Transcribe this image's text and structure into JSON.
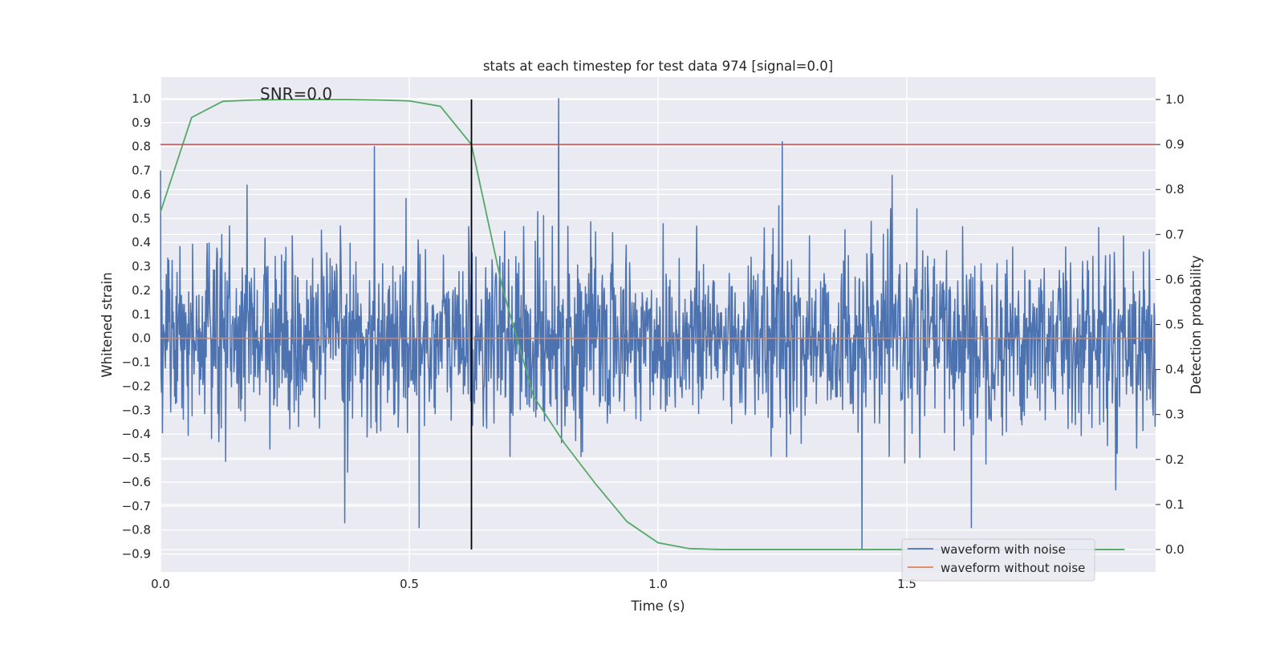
{
  "chart_data": {
    "type": "line",
    "title": "stats at each timestep for test data 974 [signal=0.0]",
    "xlabel": "Time (s)",
    "ylabel_left": "Whitened strain",
    "ylabel_right": "Detection probability",
    "xlim": [
      0.0,
      2.0
    ],
    "ylim_left": [
      -0.975,
      1.09
    ],
    "ylim_right": [
      -0.05,
      1.05
    ],
    "x_ticks": [
      "0.0",
      "0.5",
      "1.0",
      "1.5"
    ],
    "x_tick_values": [
      0.0,
      0.5,
      1.0,
      1.5
    ],
    "y_left_ticks": [
      "−0.9",
      "−0.8",
      "−0.7",
      "−0.6",
      "−0.5",
      "−0.4",
      "−0.3",
      "−0.2",
      "−0.1",
      "0.0",
      "0.1",
      "0.2",
      "0.3",
      "0.4",
      "0.5",
      "0.6",
      "0.7",
      "0.8",
      "0.9",
      "1.0"
    ],
    "y_left_tick_values": [
      -0.9,
      -0.8,
      -0.7,
      -0.6,
      -0.5,
      -0.4,
      -0.3,
      -0.2,
      -0.1,
      0.0,
      0.1,
      0.2,
      0.3,
      0.4,
      0.5,
      0.6,
      0.7,
      0.8,
      0.9,
      1.0
    ],
    "y_right_ticks": [
      "0.0",
      "0.1",
      "0.2",
      "0.3",
      "0.4",
      "0.5",
      "0.6",
      "0.7",
      "0.8",
      "0.9",
      "1.0"
    ],
    "y_right_tick_values": [
      0.0,
      0.1,
      0.2,
      0.3,
      0.4,
      0.5,
      0.6,
      0.7,
      0.8,
      0.9,
      1.0
    ],
    "annotation": "SNR=0.0",
    "grid": true,
    "legend_placement": "lower-right",
    "series": [
      {
        "name": "waveform with noise",
        "axis": "left",
        "color": "#4c72b0",
        "kind": "noise",
        "x_range": [
          0.0,
          2.0
        ],
        "points": 2048,
        "approx_peaks": [
          {
            "x": 0.0,
            "y": 0.7
          },
          {
            "x": 0.43,
            "y": 0.8
          },
          {
            "x": 0.8,
            "y": 1.0
          },
          {
            "x": 1.25,
            "y": 0.82
          },
          {
            "x": 0.37,
            "y": -0.77
          },
          {
            "x": 0.52,
            "y": -0.79
          },
          {
            "x": 1.41,
            "y": -0.88
          },
          {
            "x": 1.63,
            "y": -0.79
          }
        ],
        "typical_amplitude": 0.3
      },
      {
        "name": "waveform without noise",
        "axis": "left",
        "color": "#dd8452",
        "x": [
          0.0,
          2.0
        ],
        "y": [
          0.0,
          0.0
        ]
      },
      {
        "name": "",
        "axis": "right",
        "color": "#55a868",
        "x": [
          0.0,
          0.0625,
          0.125,
          0.1875,
          0.25,
          0.3125,
          0.375,
          0.4375,
          0.5,
          0.5625,
          0.625,
          0.6875,
          0.75,
          0.8125,
          0.875,
          0.9375,
          1.0,
          1.0625,
          1.125,
          1.1875,
          1.25,
          1.3125,
          1.375,
          1.4375,
          1.5,
          1.5625,
          1.625,
          1.6875,
          1.75,
          1.8125,
          1.875,
          1.9375
        ],
        "y": [
          0.75,
          0.96,
          0.996,
          0.999,
          1.0,
          1.0,
          1.0,
          0.999,
          0.997,
          0.985,
          0.9,
          0.58,
          0.34,
          0.235,
          0.145,
          0.062,
          0.015,
          0.002,
          0.0,
          0.0,
          0.0,
          0.0,
          0.0,
          0.0,
          0.0,
          0.0,
          0.0,
          0.0,
          0.0,
          0.0,
          0.0,
          0.0
        ]
      },
      {
        "name": "",
        "axis": "right",
        "color": "#c44e52",
        "kind": "threshold",
        "x": [
          0.0,
          2.0
        ],
        "y": [
          0.9,
          0.9
        ]
      }
    ],
    "vertical_marker": {
      "x": 0.625,
      "y_range_right": [
        0.0,
        1.0
      ],
      "color": "#000000"
    }
  }
}
